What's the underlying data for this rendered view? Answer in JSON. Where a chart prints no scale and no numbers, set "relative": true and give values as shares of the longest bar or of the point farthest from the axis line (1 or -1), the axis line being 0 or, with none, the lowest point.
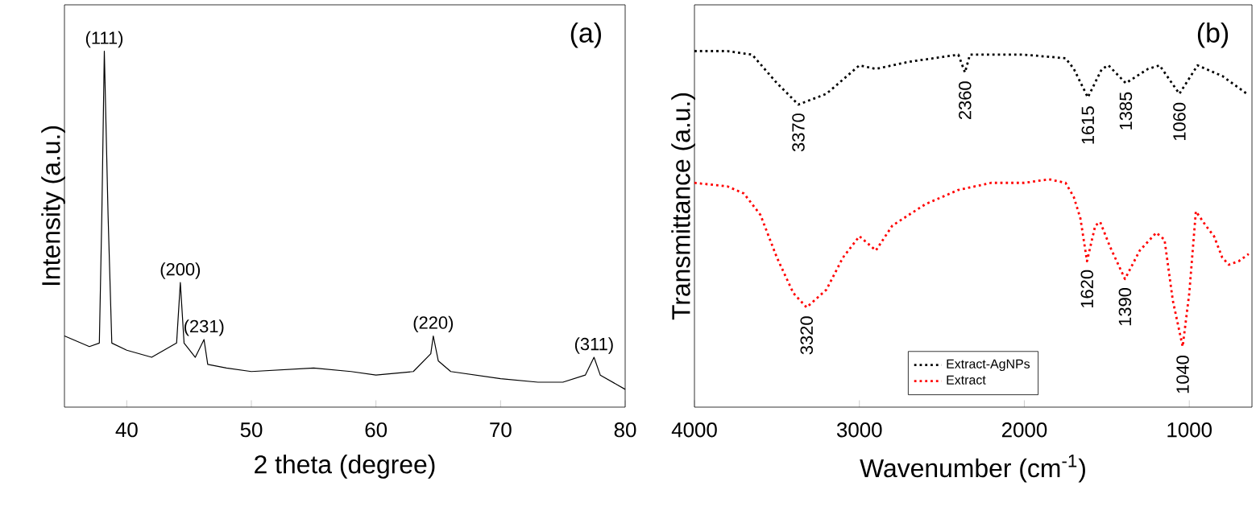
{
  "chart_data": [
    {
      "type": "line",
      "relative": true,
      "xlabel": "2 theta (degree)",
      "ylabel": "Intensity (a.u.)",
      "xlim": [
        35,
        80
      ],
      "xticks": [
        40,
        50,
        60,
        70,
        80
      ],
      "series": [
        {
          "color": "#000000",
          "line_style": "solid",
          "x": [
            35,
            37,
            37.8,
            38.0,
            38.2,
            38.5,
            38.8,
            40,
            42,
            44,
            44.3,
            44.6,
            45.5,
            46.2,
            46.5,
            48,
            50,
            55,
            58,
            60,
            63,
            64.4,
            64.6,
            65,
            66,
            70,
            73,
            75,
            76.8,
            77.5,
            78,
            80
          ],
          "values": [
            0.2,
            0.17,
            0.18,
            0.54,
            1,
            0.54,
            0.18,
            0.16,
            0.14,
            0.18,
            0.35,
            0.18,
            0.14,
            0.19,
            0.12,
            0.11,
            0.1,
            0.11,
            0.1,
            0.09,
            0.1,
            0.15,
            0.2,
            0.13,
            0.1,
            0.08,
            0.07,
            0.07,
            0.09,
            0.14,
            0.09,
            0.05
          ]
        }
      ],
      "annotations": [
        {
          "text": "(111)",
          "x": 38.2,
          "y": 1
        },
        {
          "text": "(200)",
          "x": 44.3,
          "y": 0.35
        },
        {
          "text": "(231)",
          "x": 46.2,
          "y": 0.19
        },
        {
          "text": "(220)",
          "x": 64.6,
          "y": 0.2
        },
        {
          "text": "(311)",
          "x": 77.5,
          "y": 0.14
        },
        "(a)"
      ]
    },
    {
      "type": "line",
      "relative": true,
      "xlabel": "Wavenumber (cm$^{-1}$)",
      "ylabel": "Transmittance (a.u.)",
      "xlim": [
        4000,
        620
      ],
      "xticks": [
        4000,
        3000,
        2000,
        1000
      ],
      "legend": "bottom",
      "series": [
        {
          "name": "Extract-AgNPs",
          "color": "#000000",
          "line_style": "dotted",
          "x": [
            4000,
            3800,
            3650,
            3500,
            3370,
            3200,
            3000,
            2900,
            2700,
            2400,
            2360,
            2330,
            2000,
            1750,
            1700,
            1615,
            1530,
            1490,
            1385,
            1250,
            1180,
            1060,
            950,
            800,
            650
          ],
          "values": [
            1,
            1,
            0.99,
            0.91,
            0.85,
            0.88,
            0.96,
            0.95,
            0.97,
            0.99,
            0.94,
            0.99,
            0.99,
            0.98,
            0.95,
            0.87,
            0.95,
            0.96,
            0.91,
            0.95,
            0.96,
            0.88,
            0.96,
            0.93,
            0.88
          ]
        },
        {
          "name": "Extract",
          "color": "#ff0000",
          "line_style": "dotted",
          "x": [
            4000,
            3800,
            3700,
            3600,
            3500,
            3400,
            3320,
            3200,
            3100,
            3000,
            2950,
            2900,
            2800,
            2600,
            2400,
            2200,
            2000,
            1850,
            1750,
            1700,
            1660,
            1620,
            1570,
            1540,
            1480,
            1390,
            1300,
            1200,
            1150,
            1100,
            1040,
            1000,
            960,
            900,
            850,
            800,
            760,
            700,
            640
          ],
          "values": [
            0.63,
            0.62,
            0.6,
            0.54,
            0.42,
            0.32,
            0.28,
            0.33,
            0.42,
            0.48,
            0.46,
            0.44,
            0.51,
            0.57,
            0.61,
            0.63,
            0.63,
            0.64,
            0.63,
            0.59,
            0.53,
            0.41,
            0.51,
            0.52,
            0.45,
            0.36,
            0.44,
            0.49,
            0.47,
            0.3,
            0.17,
            0.32,
            0.55,
            0.51,
            0.48,
            0.42,
            0.4,
            0.41,
            0.43
          ]
        }
      ],
      "annotations": [
        {
          "text": "3370",
          "x": 3370,
          "y": 0.85
        },
        {
          "text": "2360",
          "x": 2360,
          "y": 0.94
        },
        {
          "text": "1615",
          "x": 1615,
          "y": 0.87
        },
        {
          "text": "1385",
          "x": 1385,
          "y": 0.91
        },
        {
          "text": "1060",
          "x": 1060,
          "y": 0.88
        },
        {
          "text": "3320",
          "x": 3320,
          "y": 0.28
        },
        {
          "text": "1620",
          "x": 1620,
          "y": 0.41
        },
        {
          "text": "1390",
          "x": 1390,
          "y": 0.36
        },
        {
          "text": "1040",
          "x": 1040,
          "y": 0.17
        },
        "(b)"
      ]
    }
  ]
}
